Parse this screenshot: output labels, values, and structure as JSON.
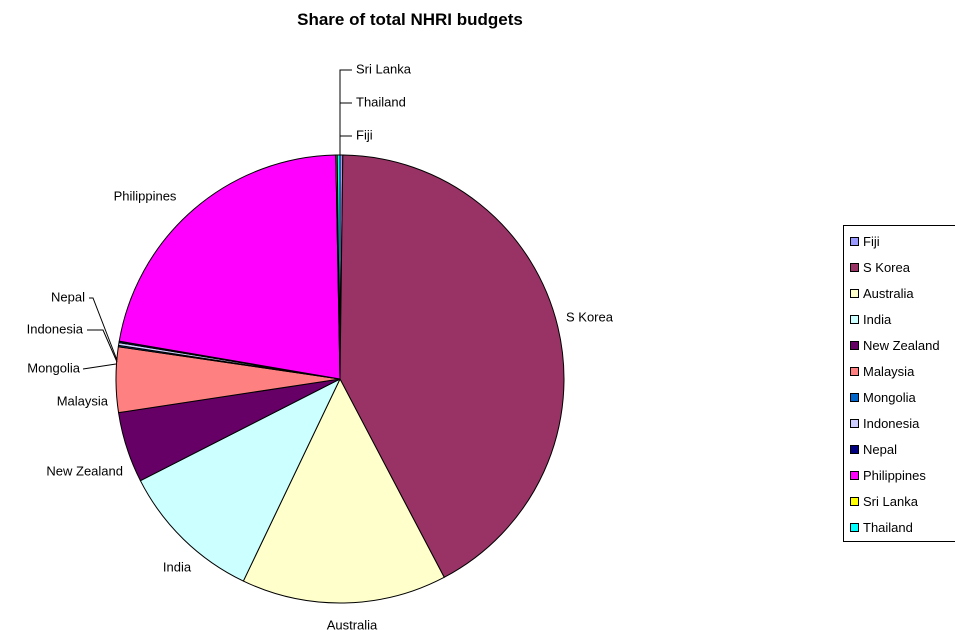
{
  "chart_data": {
    "type": "pie",
    "title": "Share of total NHRI budgets",
    "slices": [
      {
        "label": "Fiji",
        "value": 0.2,
        "color": "#9999ff"
      },
      {
        "label": "S Korea",
        "value": 42.1,
        "color": "#993366"
      },
      {
        "label": "Australia",
        "value": 14.8,
        "color": "#ffffcc"
      },
      {
        "label": "India",
        "value": 10.4,
        "color": "#ccffff"
      },
      {
        "label": "New Zealand",
        "value": 5.1,
        "color": "#660066"
      },
      {
        "label": "Malaysia",
        "value": 4.7,
        "color": "#ff8080"
      },
      {
        "label": "Mongolia",
        "value": 0.1,
        "color": "#0066cc"
      },
      {
        "label": "Indonesia",
        "value": 0.2,
        "color": "#ccccff"
      },
      {
        "label": "Nepal",
        "value": 0.1,
        "color": "#000080"
      },
      {
        "label": "Philippines",
        "value": 22.0,
        "color": "#ff00ff"
      },
      {
        "label": "Sri Lanka",
        "value": 0.1,
        "color": "#ffff00"
      },
      {
        "label": "Thailand",
        "value": 0.2,
        "color": "#00ffff"
      }
    ],
    "legend_position": "right"
  }
}
